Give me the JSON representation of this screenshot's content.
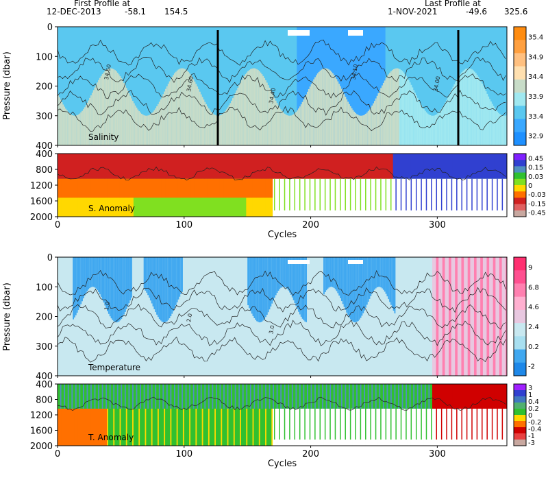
{
  "header": {
    "first_title": "First Profile at",
    "first_date": "12-DEC-2013",
    "first_lat": "-58.1",
    "first_lon": "154.5",
    "last_title": "Last Profile at",
    "last_date": "1-NOV-2021",
    "last_lat": "-49.6",
    "last_lon": "325.6"
  },
  "chart_data": [
    {
      "type": "heatmap",
      "variable": "Salinity",
      "ylabel": "Pressure (dbar)",
      "xlim": [
        0,
        355
      ],
      "ylim": [
        400,
        0
      ],
      "yticks": [
        0,
        100,
        200,
        300,
        400
      ],
      "colorbar_ticks": [
        "35.4",
        "34.9",
        "34.4",
        "33.9",
        "33.4",
        "32.9"
      ],
      "colors": [
        "#1e90ff",
        "#3aa8ff",
        "#5ac8f0",
        "#a0e8f0",
        "#c8dcc8",
        "#ffe0b0",
        "#ffc080",
        "#ffa040",
        "#ff8c10"
      ],
      "contour_labels": [
        "34.50",
        "34.60",
        "34.40",
        "34.10",
        "34.00"
      ]
    },
    {
      "type": "heatmap",
      "variable": "S. Anomaly",
      "xlim": [
        0,
        355
      ],
      "ylim": [
        2000,
        400
      ],
      "yticks": [
        400,
        800,
        1200,
        1600,
        2000
      ],
      "xticks": [
        0,
        100,
        200,
        300
      ],
      "xlabel": "Cycles",
      "colorbar_ticks": [
        "0.45",
        "0.15",
        "0.03",
        "0",
        "-0.03",
        "-0.15",
        "-0.45"
      ],
      "colors": [
        "#c8a8a0",
        "#e06060",
        "#d02020",
        "#ff7000",
        "#ffd800",
        "#80e020",
        "#30c030",
        "#5090c0",
        "#3040d0",
        "#8020ff"
      ]
    },
    {
      "type": "heatmap",
      "variable": "Temperature",
      "ylabel": "Pressure (dbar)",
      "xlim": [
        0,
        355
      ],
      "ylim": [
        400,
        0
      ],
      "yticks": [
        0,
        100,
        200,
        300,
        400
      ],
      "colorbar_ticks": [
        "9",
        "6.8",
        "4.6",
        "2.4",
        "0.2",
        "-2"
      ],
      "colors": [
        "#1e88e8",
        "#40a8f0",
        "#a8dff0",
        "#c8e8f0",
        "#e8c8e0",
        "#ffb0d0",
        "#ff80b0",
        "#ff5090",
        "#ff3070"
      ],
      "contour_labels": [
        "1.0",
        "2.0",
        "3.0"
      ]
    },
    {
      "type": "heatmap",
      "variable": "T. Anomaly",
      "xlim": [
        0,
        355
      ],
      "ylim": [
        2000,
        400
      ],
      "yticks": [
        400,
        800,
        1200,
        1600,
        2000
      ],
      "xticks": [
        0,
        100,
        200,
        300
      ],
      "xlabel": "Cycles",
      "colorbar_ticks": [
        "3",
        "1",
        "0.4",
        "0.2",
        "0",
        "-0.2",
        "-0.4",
        "-1",
        "-3"
      ],
      "colors": [
        "#c8a8a0",
        "#e84040",
        "#d00000",
        "#ff7000",
        "#ffd800",
        "#30c030",
        "#50b070",
        "#4078c0",
        "#3040d0",
        "#a020ff"
      ]
    }
  ]
}
